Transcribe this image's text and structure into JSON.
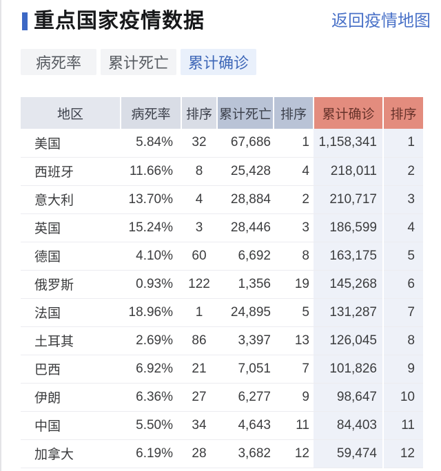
{
  "page": {
    "title": "重点国家疫情数据",
    "back_link": "返回疫情地图"
  },
  "colors": {
    "accent_bar": "#3c68c5",
    "link": "#4a72c8",
    "tab_active_bg": "#e9f0fb",
    "tab_active_text": "#3f68b8",
    "header_region_bg": "#e4e7ee",
    "header_rate_bg": "#d9dde6",
    "header_deaths_bg": "#b9c3d6",
    "header_confirmed_bg": "#e38c7e",
    "header_confirmed_text": "#66322a",
    "confirmed_col_tint": "#eef1f8"
  },
  "tabs": [
    {
      "label": "病死率",
      "active": false
    },
    {
      "label": "累计死亡",
      "active": false
    },
    {
      "label": "累计确诊",
      "active": true
    }
  ],
  "table": {
    "columns": [
      "地区",
      "病死率",
      "排序",
      "累计死亡",
      "排序",
      "累计确诊",
      "排序"
    ],
    "rows": [
      [
        "美国",
        "5.84%",
        "32",
        "67,686",
        "1",
        "1,158,341",
        "1"
      ],
      [
        "西班牙",
        "11.66%",
        "8",
        "25,428",
        "4",
        "218,011",
        "2"
      ],
      [
        "意大利",
        "13.70%",
        "4",
        "28,884",
        "2",
        "210,717",
        "3"
      ],
      [
        "英国",
        "15.24%",
        "3",
        "28,446",
        "3",
        "186,599",
        "4"
      ],
      [
        "德国",
        "4.10%",
        "60",
        "6,692",
        "8",
        "163,175",
        "5"
      ],
      [
        "俄罗斯",
        "0.93%",
        "122",
        "1,356",
        "19",
        "145,268",
        "6"
      ],
      [
        "法国",
        "18.96%",
        "1",
        "24,895",
        "5",
        "131,287",
        "7"
      ],
      [
        "土耳其",
        "2.69%",
        "86",
        "3,397",
        "13",
        "126,045",
        "8"
      ],
      [
        "巴西",
        "6.92%",
        "21",
        "7,051",
        "7",
        "101,826",
        "9"
      ],
      [
        "伊朗",
        "6.36%",
        "27",
        "6,277",
        "9",
        "98,647",
        "10"
      ],
      [
        "中国",
        "5.50%",
        "34",
        "4,643",
        "11",
        "84,403",
        "11"
      ],
      [
        "加拿大",
        "6.19%",
        "28",
        "3,682",
        "12",
        "59,474",
        "12"
      ]
    ]
  }
}
